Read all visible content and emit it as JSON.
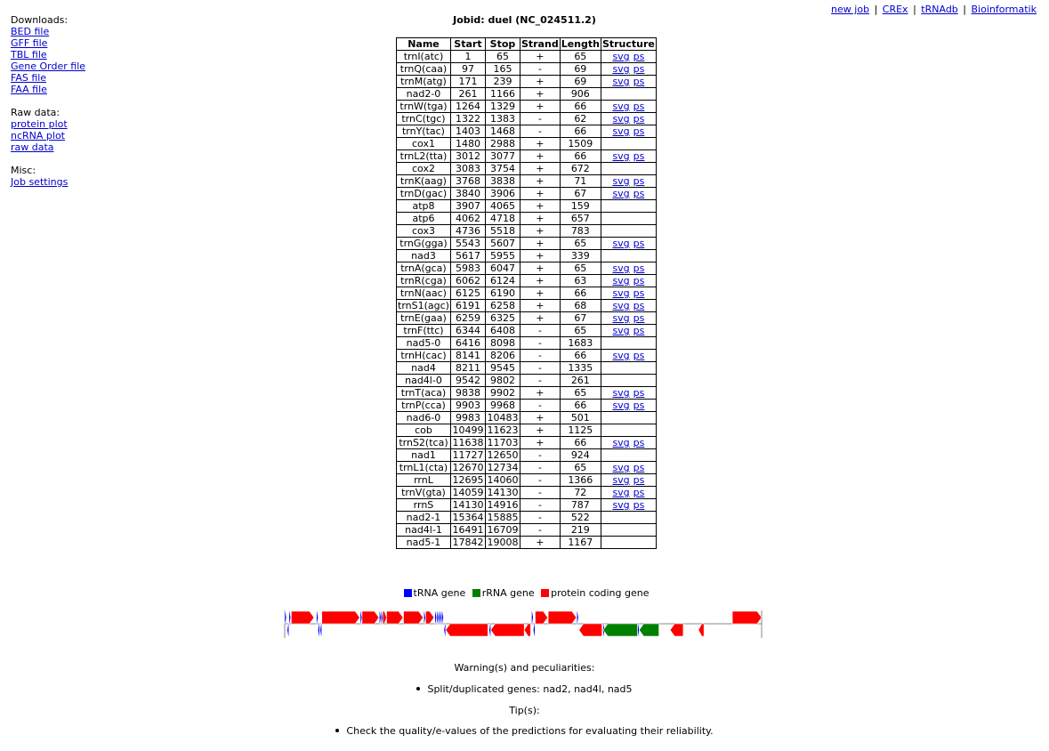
{
  "sidebar": {
    "downloads": {
      "heading": "Downloads:",
      "links": [
        "BED file",
        "GFF file",
        "TBL file",
        "Gene Order file",
        "FAS file",
        "FAA file"
      ]
    },
    "raw": {
      "heading": "Raw data:",
      "links": [
        "protein plot",
        "ncRNA plot",
        "raw data"
      ]
    },
    "misc": {
      "heading": "Misc:",
      "links": [
        "Job settings"
      ]
    }
  },
  "topnav": {
    "links": [
      "new job",
      "CREx",
      "tRNAdb",
      "Bioinformatik"
    ],
    "separator": "|"
  },
  "title": "Jobid: duel (NC_024511.2)",
  "table": {
    "headers": [
      "Name",
      "Start",
      "Stop",
      "Strand",
      "Length",
      "Structure"
    ],
    "struct_links": [
      "svg",
      "ps"
    ],
    "rows": [
      {
        "name": "trnI(atc)",
        "start": "1",
        "stop": "65",
        "strand": "+",
        "length": "65",
        "structure": true
      },
      {
        "name": "trnQ(caa)",
        "start": "97",
        "stop": "165",
        "strand": "-",
        "length": "69",
        "structure": true
      },
      {
        "name": "trnM(atg)",
        "start": "171",
        "stop": "239",
        "strand": "+",
        "length": "69",
        "structure": true
      },
      {
        "name": "nad2-0",
        "start": "261",
        "stop": "1166",
        "strand": "+",
        "length": "906",
        "structure": false
      },
      {
        "name": "trnW(tga)",
        "start": "1264",
        "stop": "1329",
        "strand": "+",
        "length": "66",
        "structure": true
      },
      {
        "name": "trnC(tgc)",
        "start": "1322",
        "stop": "1383",
        "strand": "-",
        "length": "62",
        "structure": true
      },
      {
        "name": "trnY(tac)",
        "start": "1403",
        "stop": "1468",
        "strand": "-",
        "length": "66",
        "structure": true
      },
      {
        "name": "cox1",
        "start": "1480",
        "stop": "2988",
        "strand": "+",
        "length": "1509",
        "structure": false
      },
      {
        "name": "trnL2(tta)",
        "start": "3012",
        "stop": "3077",
        "strand": "+",
        "length": "66",
        "structure": true
      },
      {
        "name": "cox2",
        "start": "3083",
        "stop": "3754",
        "strand": "+",
        "length": "672",
        "structure": false
      },
      {
        "name": "trnK(aag)",
        "start": "3768",
        "stop": "3838",
        "strand": "+",
        "length": "71",
        "structure": true
      },
      {
        "name": "trnD(gac)",
        "start": "3840",
        "stop": "3906",
        "strand": "+",
        "length": "67",
        "structure": true
      },
      {
        "name": "atp8",
        "start": "3907",
        "stop": "4065",
        "strand": "+",
        "length": "159",
        "structure": false
      },
      {
        "name": "atp6",
        "start": "4062",
        "stop": "4718",
        "strand": "+",
        "length": "657",
        "structure": false
      },
      {
        "name": "cox3",
        "start": "4736",
        "stop": "5518",
        "strand": "+",
        "length": "783",
        "structure": false
      },
      {
        "name": "trnG(gga)",
        "start": "5543",
        "stop": "5607",
        "strand": "+",
        "length": "65",
        "structure": true
      },
      {
        "name": "nad3",
        "start": "5617",
        "stop": "5955",
        "strand": "+",
        "length": "339",
        "structure": false
      },
      {
        "name": "trnA(gca)",
        "start": "5983",
        "stop": "6047",
        "strand": "+",
        "length": "65",
        "structure": true
      },
      {
        "name": "trnR(cga)",
        "start": "6062",
        "stop": "6124",
        "strand": "+",
        "length": "63",
        "structure": true
      },
      {
        "name": "trnN(aac)",
        "start": "6125",
        "stop": "6190",
        "strand": "+",
        "length": "66",
        "structure": true
      },
      {
        "name": "trnS1(agc)",
        "start": "6191",
        "stop": "6258",
        "strand": "+",
        "length": "68",
        "structure": true
      },
      {
        "name": "trnE(gaa)",
        "start": "6259",
        "stop": "6325",
        "strand": "+",
        "length": "67",
        "structure": true
      },
      {
        "name": "trnF(ttc)",
        "start": "6344",
        "stop": "6408",
        "strand": "-",
        "length": "65",
        "structure": true
      },
      {
        "name": "nad5-0",
        "start": "6416",
        "stop": "8098",
        "strand": "-",
        "length": "1683",
        "structure": false
      },
      {
        "name": "trnH(cac)",
        "start": "8141",
        "stop": "8206",
        "strand": "-",
        "length": "66",
        "structure": true
      },
      {
        "name": "nad4",
        "start": "8211",
        "stop": "9545",
        "strand": "-",
        "length": "1335",
        "structure": false
      },
      {
        "name": "nad4l-0",
        "start": "9542",
        "stop": "9802",
        "strand": "-",
        "length": "261",
        "structure": false
      },
      {
        "name": "trnT(aca)",
        "start": "9838",
        "stop": "9902",
        "strand": "+",
        "length": "65",
        "structure": true
      },
      {
        "name": "trnP(cca)",
        "start": "9903",
        "stop": "9968",
        "strand": "-",
        "length": "66",
        "structure": true
      },
      {
        "name": "nad6-0",
        "start": "9983",
        "stop": "10483",
        "strand": "+",
        "length": "501",
        "structure": false
      },
      {
        "name": "cob",
        "start": "10499",
        "stop": "11623",
        "strand": "+",
        "length": "1125",
        "structure": false
      },
      {
        "name": "trnS2(tca)",
        "start": "11638",
        "stop": "11703",
        "strand": "+",
        "length": "66",
        "structure": true
      },
      {
        "name": "nad1",
        "start": "11727",
        "stop": "12650",
        "strand": "-",
        "length": "924",
        "structure": false
      },
      {
        "name": "trnL1(cta)",
        "start": "12670",
        "stop": "12734",
        "strand": "-",
        "length": "65",
        "structure": true
      },
      {
        "name": "rrnL",
        "start": "12695",
        "stop": "14060",
        "strand": "-",
        "length": "1366",
        "structure": true
      },
      {
        "name": "trnV(gta)",
        "start": "14059",
        "stop": "14130",
        "strand": "-",
        "length": "72",
        "structure": true
      },
      {
        "name": "rrnS",
        "start": "14130",
        "stop": "14916",
        "strand": "-",
        "length": "787",
        "structure": true
      },
      {
        "name": "nad2-1",
        "start": "15364",
        "stop": "15885",
        "strand": "-",
        "length": "522",
        "structure": false
      },
      {
        "name": "nad4l-1",
        "start": "16491",
        "stop": "16709",
        "strand": "-",
        "length": "219",
        "structure": false
      },
      {
        "name": "nad5-1",
        "start": "17842",
        "stop": "19008",
        "strand": "+",
        "length": "1167",
        "structure": false
      }
    ]
  },
  "legend": {
    "items": [
      {
        "label": "tRNA gene",
        "color": "#0000ff"
      },
      {
        "label": "rRNA gene",
        "color": "#008000"
      },
      {
        "label": "protein coding gene",
        "color": "#ff0000"
      }
    ]
  },
  "genemap": {
    "genome_length": 19008,
    "trna_color": "#0000ff",
    "rrna_color": "#008000",
    "protein_color": "#ff0000"
  },
  "warnings": {
    "heading": "Warning(s) and peculiarities:",
    "items": [
      "Split/duplicated genes: nad2, nad4l, nad5"
    ]
  },
  "tips": {
    "heading": "Tip(s):",
    "items": [
      "Check the quality/e-values of the predictions for evaluating their reliability."
    ]
  }
}
